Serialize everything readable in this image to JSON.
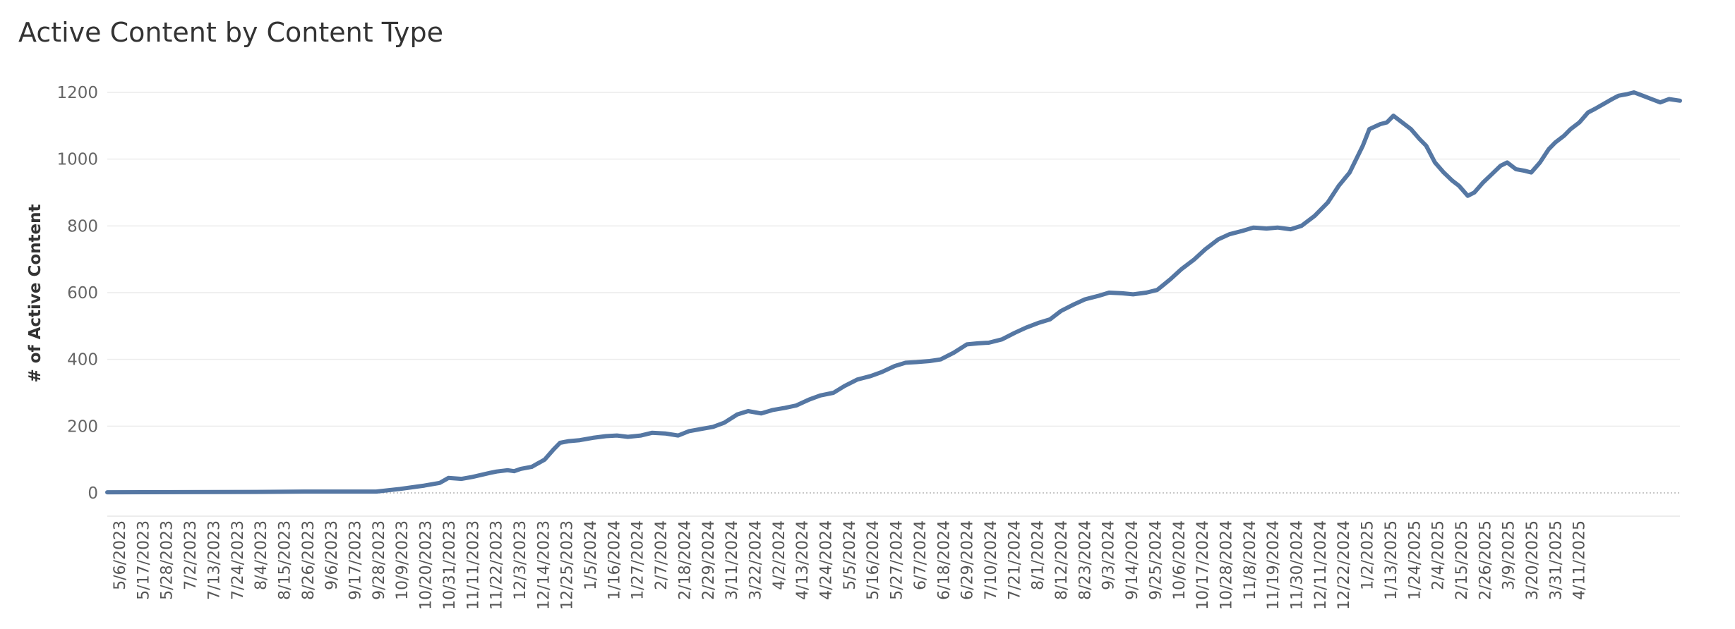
{
  "chart_data": {
    "type": "line",
    "title": "Active Content by Content Type",
    "xlabel": "",
    "ylabel": "# of Active Content",
    "ylim": [
      0,
      1200
    ],
    "yticks": [
      0,
      200,
      400,
      600,
      800,
      1000,
      1200
    ],
    "grid": true,
    "x_start": "5/6/2023",
    "x_end": "4/24/2025",
    "x_tick_labels": [
      "5/6/2023",
      "5/17/2023",
      "5/28/2023",
      "7/2/2023",
      "7/13/2023",
      "7/24/2023",
      "8/4/2023",
      "8/15/2023",
      "8/26/2023",
      "9/6/2023",
      "9/17/2023",
      "9/28/2023",
      "10/9/2023",
      "10/20/2023",
      "10/31/2023",
      "11/11/2023",
      "11/22/2023",
      "12/3/2023",
      "12/14/2023",
      "12/25/2023",
      "1/5/2024",
      "1/16/2024",
      "1/27/2024",
      "2/7/2024",
      "2/18/2024",
      "2/29/2024",
      "3/11/2024",
      "3/22/2024",
      "4/2/2024",
      "4/13/2024",
      "4/24/2024",
      "5/5/2024",
      "5/16/2024",
      "5/27/2024",
      "6/7/2024",
      "6/18/2024",
      "6/29/2024",
      "7/10/2024",
      "7/21/2024",
      "8/1/2024",
      "8/12/2024",
      "8/23/2024",
      "9/3/2024",
      "9/14/2024",
      "9/25/2024",
      "10/6/2024",
      "10/17/2024",
      "10/28/2024",
      "11/8/2024",
      "11/19/2024",
      "11/30/2024",
      "12/11/2024",
      "12/22/2024",
      "1/2/2025",
      "1/13/2025",
      "1/24/2025",
      "2/4/2025",
      "2/15/2025",
      "2/26/2025",
      "3/9/2025",
      "3/20/2025",
      "3/31/2025",
      "4/11/2025"
    ],
    "series": [
      {
        "name": "",
        "color": "#5577a3",
        "points": [
          [
            "5/6/2023",
            2
          ],
          [
            "7/13/2023",
            3
          ],
          [
            "8/4/2023",
            4
          ],
          [
            "9/6/2023",
            4
          ],
          [
            "9/17/2023",
            12
          ],
          [
            "9/28/2023",
            22
          ],
          [
            "10/5/2023",
            30
          ],
          [
            "10/9/2023",
            45
          ],
          [
            "10/15/2023",
            42
          ],
          [
            "10/20/2023",
            48
          ],
          [
            "10/28/2023",
            60
          ],
          [
            "10/31/2023",
            64
          ],
          [
            "11/5/2023",
            68
          ],
          [
            "11/8/2023",
            65
          ],
          [
            "11/11/2023",
            72
          ],
          [
            "11/16/2023",
            78
          ],
          [
            "11/22/2023",
            100
          ],
          [
            "11/26/2023",
            130
          ],
          [
            "11/29/2023",
            150
          ],
          [
            "12/3/2023",
            155
          ],
          [
            "12/8/2023",
            158
          ],
          [
            "12/14/2023",
            165
          ],
          [
            "12/20/2023",
            170
          ],
          [
            "12/25/2023",
            172
          ],
          [
            "12/30/2023",
            168
          ],
          [
            "1/5/2024",
            172
          ],
          [
            "1/10/2024",
            180
          ],
          [
            "1/16/2024",
            178
          ],
          [
            "1/22/2024",
            172
          ],
          [
            "1/27/2024",
            185
          ],
          [
            "2/2/2024",
            192
          ],
          [
            "2/7/2024",
            198
          ],
          [
            "2/12/2024",
            210
          ],
          [
            "2/18/2024",
            235
          ],
          [
            "2/23/2024",
            245
          ],
          [
            "2/29/2024",
            238
          ],
          [
            "3/5/2024",
            248
          ],
          [
            "3/11/2024",
            255
          ],
          [
            "3/16/2024",
            262
          ],
          [
            "3/22/2024",
            280
          ],
          [
            "3/27/2024",
            292
          ],
          [
            "4/2/2024",
            300
          ],
          [
            "4/7/2024",
            320
          ],
          [
            "4/13/2024",
            340
          ],
          [
            "4/19/2024",
            350
          ],
          [
            "4/24/2024",
            362
          ],
          [
            "4/30/2024",
            380
          ],
          [
            "5/5/2024",
            390
          ],
          [
            "5/10/2024",
            392
          ],
          [
            "5/16/2024",
            395
          ],
          [
            "5/21/2024",
            400
          ],
          [
            "5/27/2024",
            420
          ],
          [
            "6/2/2024",
            445
          ],
          [
            "6/7/2024",
            448
          ],
          [
            "6/12/2024",
            450
          ],
          [
            "6/18/2024",
            460
          ],
          [
            "6/24/2024",
            480
          ],
          [
            "6/29/2024",
            495
          ],
          [
            "7/5/2024",
            510
          ],
          [
            "7/10/2024",
            520
          ],
          [
            "7/15/2024",
            545
          ],
          [
            "7/21/2024",
            565
          ],
          [
            "7/26/2024",
            580
          ],
          [
            "8/1/2024",
            590
          ],
          [
            "8/6/2024",
            600
          ],
          [
            "8/12/2024",
            598
          ],
          [
            "8/17/2024",
            595
          ],
          [
            "8/23/2024",
            600
          ],
          [
            "8/28/2024",
            608
          ],
          [
            "9/3/2024",
            640
          ],
          [
            "9/8/2024",
            670
          ],
          [
            "9/14/2024",
            700
          ],
          [
            "9/19/2024",
            730
          ],
          [
            "9/25/2024",
            760
          ],
          [
            "9/30/2024",
            775
          ],
          [
            "10/6/2024",
            785
          ],
          [
            "10/11/2024",
            795
          ],
          [
            "10/17/2024",
            792
          ],
          [
            "10/22/2024",
            795
          ],
          [
            "10/28/2024",
            790
          ],
          [
            "11/2/2024",
            800
          ],
          [
            "11/8/2024",
            830
          ],
          [
            "11/14/2024",
            870
          ],
          [
            "11/19/2024",
            920
          ],
          [
            "11/24/2024",
            960
          ],
          [
            "11/30/2024",
            1040
          ],
          [
            "12/3/2024",
            1090
          ],
          [
            "12/8/2024",
            1105
          ],
          [
            "12/11/2024",
            1110
          ],
          [
            "12/14/2024",
            1130
          ],
          [
            "12/18/2024",
            1110
          ],
          [
            "12/22/2024",
            1090
          ],
          [
            "12/26/2024",
            1060
          ],
          [
            "12/29/2024",
            1040
          ],
          [
            "1/2/2025",
            990
          ],
          [
            "1/6/2025",
            960
          ],
          [
            "1/10/2025",
            935
          ],
          [
            "1/13/2025",
            920
          ],
          [
            "1/17/2025",
            890
          ],
          [
            "1/20/2025",
            900
          ],
          [
            "1/24/2025",
            930
          ],
          [
            "1/28/2025",
            955
          ],
          [
            "2/1/2025",
            980
          ],
          [
            "2/4/2025",
            990
          ],
          [
            "2/8/2025",
            970
          ],
          [
            "2/12/2025",
            965
          ],
          [
            "2/15/2025",
            960
          ],
          [
            "2/19/2025",
            990
          ],
          [
            "2/23/2025",
            1030
          ],
          [
            "2/26/2025",
            1050
          ],
          [
            "3/2/2025",
            1070
          ],
          [
            "3/5/2025",
            1090
          ],
          [
            "3/9/2025",
            1110
          ],
          [
            "3/13/2025",
            1140
          ],
          [
            "3/16/2025",
            1150
          ],
          [
            "3/20/2025",
            1165
          ],
          [
            "3/24/2025",
            1180
          ],
          [
            "3/27/2025",
            1190
          ],
          [
            "3/31/2025",
            1195
          ],
          [
            "4/3/2025",
            1200
          ],
          [
            "4/7/2025",
            1190
          ],
          [
            "4/11/2025",
            1180
          ],
          [
            "4/15/2025",
            1170
          ],
          [
            "4/19/2025",
            1180
          ],
          [
            "4/24/2025",
            1175
          ]
        ]
      }
    ]
  }
}
